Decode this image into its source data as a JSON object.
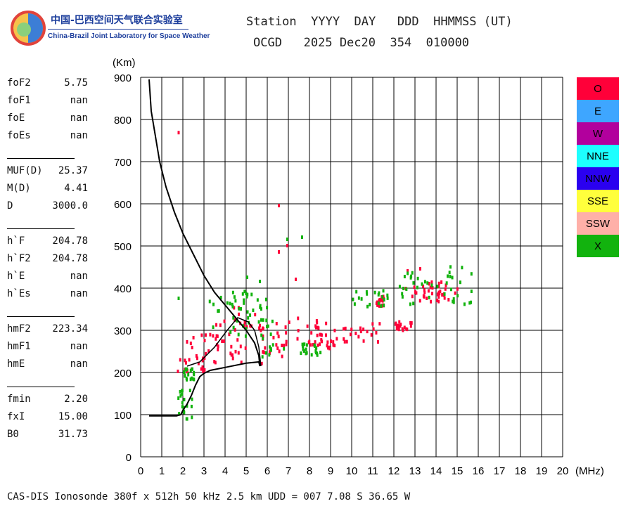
{
  "logo": {
    "name_cn": "中国-巴西空间天气联合实验室",
    "name_en": "China-Brazil Joint Laboratory for Space Weather"
  },
  "header": {
    "labels_line": "Station  YYYY  DAY   DDD  HHMMSS (UT)",
    "values_line": "OCGD   2025 Dec20  354  010000"
  },
  "parameters": {
    "group1": [
      {
        "name": "foF2",
        "value": "5.75"
      },
      {
        "name": "foF1",
        "value": "nan"
      },
      {
        "name": "foE",
        "value": "nan"
      },
      {
        "name": "foEs",
        "value": "nan"
      }
    ],
    "group2": [
      {
        "name": "MUF(D)",
        "value": "25.37"
      },
      {
        "name": "M(D)",
        "value": "4.41"
      },
      {
        "name": "D",
        "value": "3000.0"
      }
    ],
    "group3": [
      {
        "name": "h`F",
        "value": "204.78"
      },
      {
        "name": "h`F2",
        "value": "204.78"
      },
      {
        "name": "h`E",
        "value": "nan"
      },
      {
        "name": "h`Es",
        "value": "nan"
      }
    ],
    "group4": [
      {
        "name": "hmF2",
        "value": "223.34"
      },
      {
        "name": "hmF1",
        "value": "nan"
      },
      {
        "name": "hmE",
        "value": "nan"
      }
    ],
    "group5": [
      {
        "name": "fmin",
        "value": "2.20"
      },
      {
        "name": "fxI",
        "value": "15.00"
      },
      {
        "name": "B0",
        "value": "31.73"
      }
    ]
  },
  "footer": "CAS-DIS Ionosonde 380f x 512h 50 kHz 2.5 km UDD = 007 7.08 S 36.65 W",
  "legend": [
    {
      "label": "O",
      "color": "#ff0039"
    },
    {
      "label": "E",
      "color": "#3ea6ff"
    },
    {
      "label": "W",
      "color": "#b2009d"
    },
    {
      "label": "NNE",
      "color": "#1dffff"
    },
    {
      "label": "NNW",
      "color": "#2a00f0"
    },
    {
      "label": "SSE",
      "color": "#ffff3c"
    },
    {
      "label": "SSW",
      "color": "#ffb0a8"
    },
    {
      "label": "X",
      "color": "#12b30e"
    }
  ],
  "chart_data": {
    "type": "scatter",
    "xlabel": "(MHz)",
    "ylabel": "(Km)",
    "xlim": [
      0,
      20
    ],
    "ylim": [
      0,
      900
    ],
    "xticks": [
      0,
      1,
      2,
      3,
      4,
      5,
      6,
      7,
      8,
      9,
      10,
      11,
      12,
      13,
      14,
      15,
      16,
      17,
      18,
      19,
      20
    ],
    "yticks": [
      0,
      100,
      200,
      300,
      400,
      500,
      600,
      700,
      800,
      900
    ],
    "grid": true,
    "legend_position": "right",
    "series": [
      {
        "name": "O",
        "color": "#ff0039",
        "clusters": [
          {
            "x": [
              1.7,
              3.0
            ],
            "y": [
              205,
              240
            ]
          },
          {
            "x": [
              2.0,
              4.6
            ],
            "y": [
              220,
              320
            ]
          },
          {
            "x": [
              3.0,
              4.8
            ],
            "y": [
              240,
              360
            ]
          },
          {
            "x": [
              4.5,
              5.9
            ],
            "y": [
              225,
              350
            ]
          },
          {
            "x": [
              5.7,
              7.0
            ],
            "y": [
              240,
              330
            ]
          },
          {
            "x": [
              7.3,
              9.3
            ],
            "y": [
              255,
              335
            ]
          },
          {
            "x": [
              8.0,
              9.3
            ],
            "y": [
              260,
              300
            ]
          },
          {
            "x": [
              9.5,
              11.4
            ],
            "y": [
              275,
              320
            ]
          },
          {
            "x": [
              11.1,
              11.5
            ],
            "y": [
              360,
              385
            ]
          },
          {
            "x": [
              12.0,
              12.8
            ],
            "y": [
              300,
              325
            ]
          },
          {
            "x": [
              12.5,
              13.8
            ],
            "y": [
              370,
              430
            ]
          },
          {
            "x": [
              14.0,
              15.0
            ],
            "y": [
              370,
              420
            ]
          }
        ],
        "points": [
          [
            1.75,
            773
          ],
          [
            6.5,
            600
          ],
          [
            6.5,
            490
          ],
          [
            6.9,
            505
          ],
          [
            7.3,
            425
          ],
          [
            12.6,
            445
          ],
          [
            13.2,
            450
          ]
        ]
      },
      {
        "name": "X",
        "color": "#12b30e",
        "clusters": [
          {
            "x": [
              1.7,
              2.4
            ],
            "y": [
              80,
              165
            ]
          },
          {
            "x": [
              2.0,
              2.5
            ],
            "y": [
              180,
              215
            ]
          },
          {
            "x": [
              3.2,
              5.1
            ],
            "y": [
              280,
              400
            ]
          },
          {
            "x": [
              3.6,
              5.7
            ],
            "y": [
              310,
              400
            ]
          },
          {
            "x": [
              5.4,
              6.8
            ],
            "y": [
              240,
              390
            ]
          },
          {
            "x": [
              7.5,
              8.5
            ],
            "y": [
              245,
              275
            ]
          },
          {
            "x": [
              10.0,
              11.8
            ],
            "y": [
              360,
              400
            ]
          },
          {
            "x": [
              12.0,
              13.8
            ],
            "y": [
              365,
              445
            ]
          },
          {
            "x": [
              14.0,
              15.8
            ],
            "y": [
              365,
              455
            ]
          }
        ],
        "points": [
          [
            1.75,
            380
          ],
          [
            6.9,
            520
          ],
          [
            7.6,
            525
          ],
          [
            5.0,
            430
          ],
          [
            5.6,
            420
          ]
        ]
      }
    ],
    "profile_trace": {
      "name": "profile",
      "color": "#000000",
      "points": [
        [
          0.4,
          895
        ],
        [
          0.5,
          820
        ],
        [
          0.7,
          760
        ],
        [
          0.9,
          700
        ],
        [
          1.2,
          640
        ],
        [
          1.6,
          580
        ],
        [
          2.0,
          530
        ],
        [
          2.5,
          480
        ],
        [
          3.0,
          430
        ],
        [
          3.5,
          390
        ],
        [
          4.0,
          360
        ],
        [
          4.5,
          330
        ],
        [
          5.0,
          300
        ],
        [
          5.4,
          270
        ],
        [
          5.6,
          240
        ],
        [
          5.65,
          215
        ],
        [
          5.6,
          225
        ],
        [
          5.0,
          222
        ],
        [
          4.0,
          212
        ],
        [
          3.3,
          205
        ],
        [
          3.0,
          198
        ],
        [
          2.8,
          190
        ],
        [
          2.6,
          170
        ],
        [
          2.4,
          145
        ],
        [
          2.2,
          125
        ],
        [
          2.0,
          110
        ],
        [
          1.9,
          100
        ],
        [
          1.7,
          97
        ],
        [
          1.2,
          97
        ],
        [
          0.4,
          97
        ]
      ]
    },
    "secondary_trace": {
      "name": "virtual-height",
      "color": "#000000",
      "points": [
        [
          2.2,
          215
        ],
        [
          2.8,
          225
        ],
        [
          3.5,
          260
        ],
        [
          4.1,
          300
        ],
        [
          4.6,
          330
        ],
        [
          5.1,
          320
        ],
        [
          5.4,
          300
        ],
        [
          5.6,
          260
        ],
        [
          5.7,
          215
        ]
      ]
    }
  }
}
